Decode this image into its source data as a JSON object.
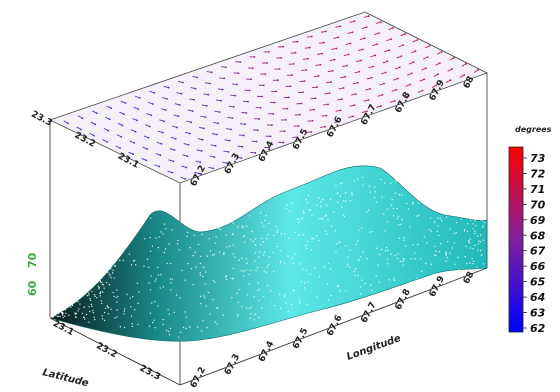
{
  "chart_data": {
    "type": "surface-3d",
    "title": "",
    "xlabel": "Longitude",
    "ylabel": "Latitude",
    "zlabel": "",
    "x_ticks": [
      "67.2",
      "67.3",
      "67.4",
      "67.5",
      "67.6",
      "67.7",
      "67.8",
      "67.9",
      "68"
    ],
    "y_ticks": [
      "23.1",
      "23.2",
      "23.3"
    ],
    "y_ticks_top": [
      "23.3",
      "23.2",
      "23.1"
    ],
    "z_ticks": [
      "70",
      "60"
    ],
    "colorbar": {
      "title": "degrees",
      "ticks": [
        "73",
        "72",
        "71",
        "70",
        "69",
        "68",
        "67",
        "66",
        "65",
        "64",
        "63",
        "62"
      ],
      "colors": [
        "#ff0000",
        "#0000ff"
      ]
    },
    "surface_color": "#20c8c8",
    "top_panel": "vector field",
    "x_range": [
      67.1,
      68.0
    ],
    "y_range": [
      23.0,
      23.3
    ],
    "grid": false,
    "legend": "right"
  }
}
